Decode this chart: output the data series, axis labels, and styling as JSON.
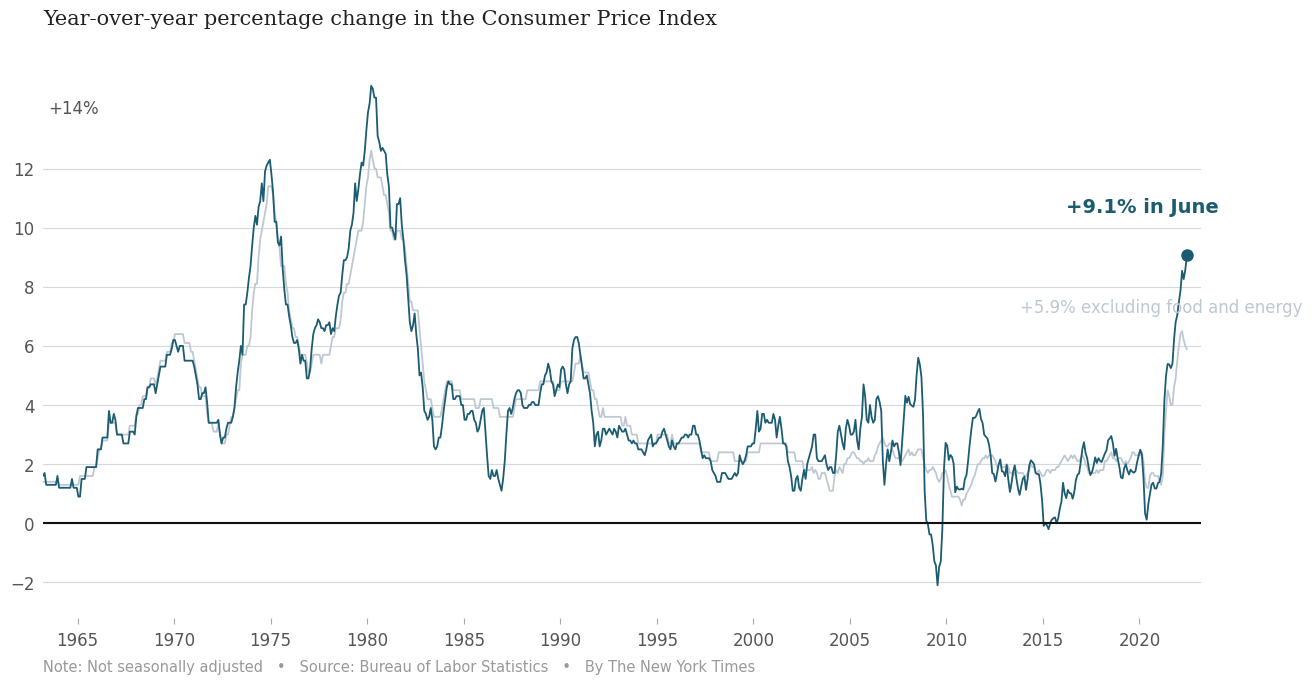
{
  "title": "Year-over-year percentage change in the Consumer Price Index",
  "annotation_main": "+9.1% in June",
  "annotation_core": "+5.9% excluding food and energy",
  "footer": "Note: Not seasonally adjusted   •   Source: Bureau of Labor Statistics   •   By The New York Times",
  "teal_color": "#1b5c72",
  "light_gray": "#bec8d2",
  "bg_color": "#ffffff",
  "grid_color": "#d5d9de",
  "zero_line_color": "#111111",
  "ylim_min": -3.2,
  "ylim_max": 15.8,
  "xlim_min": 1963.2,
  "xlim_max": 2023.2,
  "yticks": [
    -2,
    0,
    2,
    4,
    6,
    8,
    10,
    12
  ],
  "xtick_years": [
    1965,
    1970,
    1975,
    1980,
    1985,
    1990,
    1995,
    2000,
    2005,
    2010,
    2015,
    2020
  ],
  "title_fontsize": 15,
  "tick_fontsize": 12,
  "annotation_fontsize_main": 14,
  "annotation_fontsize_core": 12,
  "footer_fontsize": 10.5
}
